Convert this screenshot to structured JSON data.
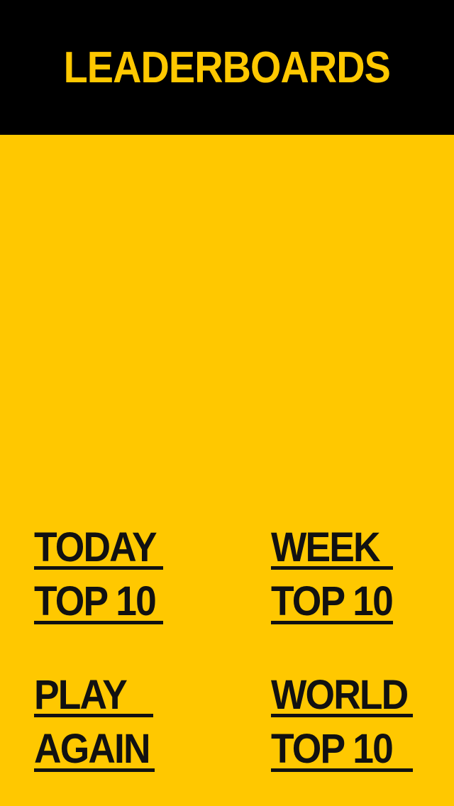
{
  "header": {
    "title": "LEADERBOARDS"
  },
  "buttons": {
    "today": {
      "line1": "TODAY",
      "line2": "TOP 10"
    },
    "week": {
      "line1": "WEEK",
      "line2": "TOP 10"
    },
    "play": {
      "line1": "PLAY",
      "line2": "AGAIN"
    },
    "world": {
      "line1": "WORLD",
      "line2": "TOP 10"
    }
  },
  "colors": {
    "background": "#ffc800",
    "header_background": "#000000",
    "title_color": "#ffc800",
    "button_text": "#111111"
  }
}
